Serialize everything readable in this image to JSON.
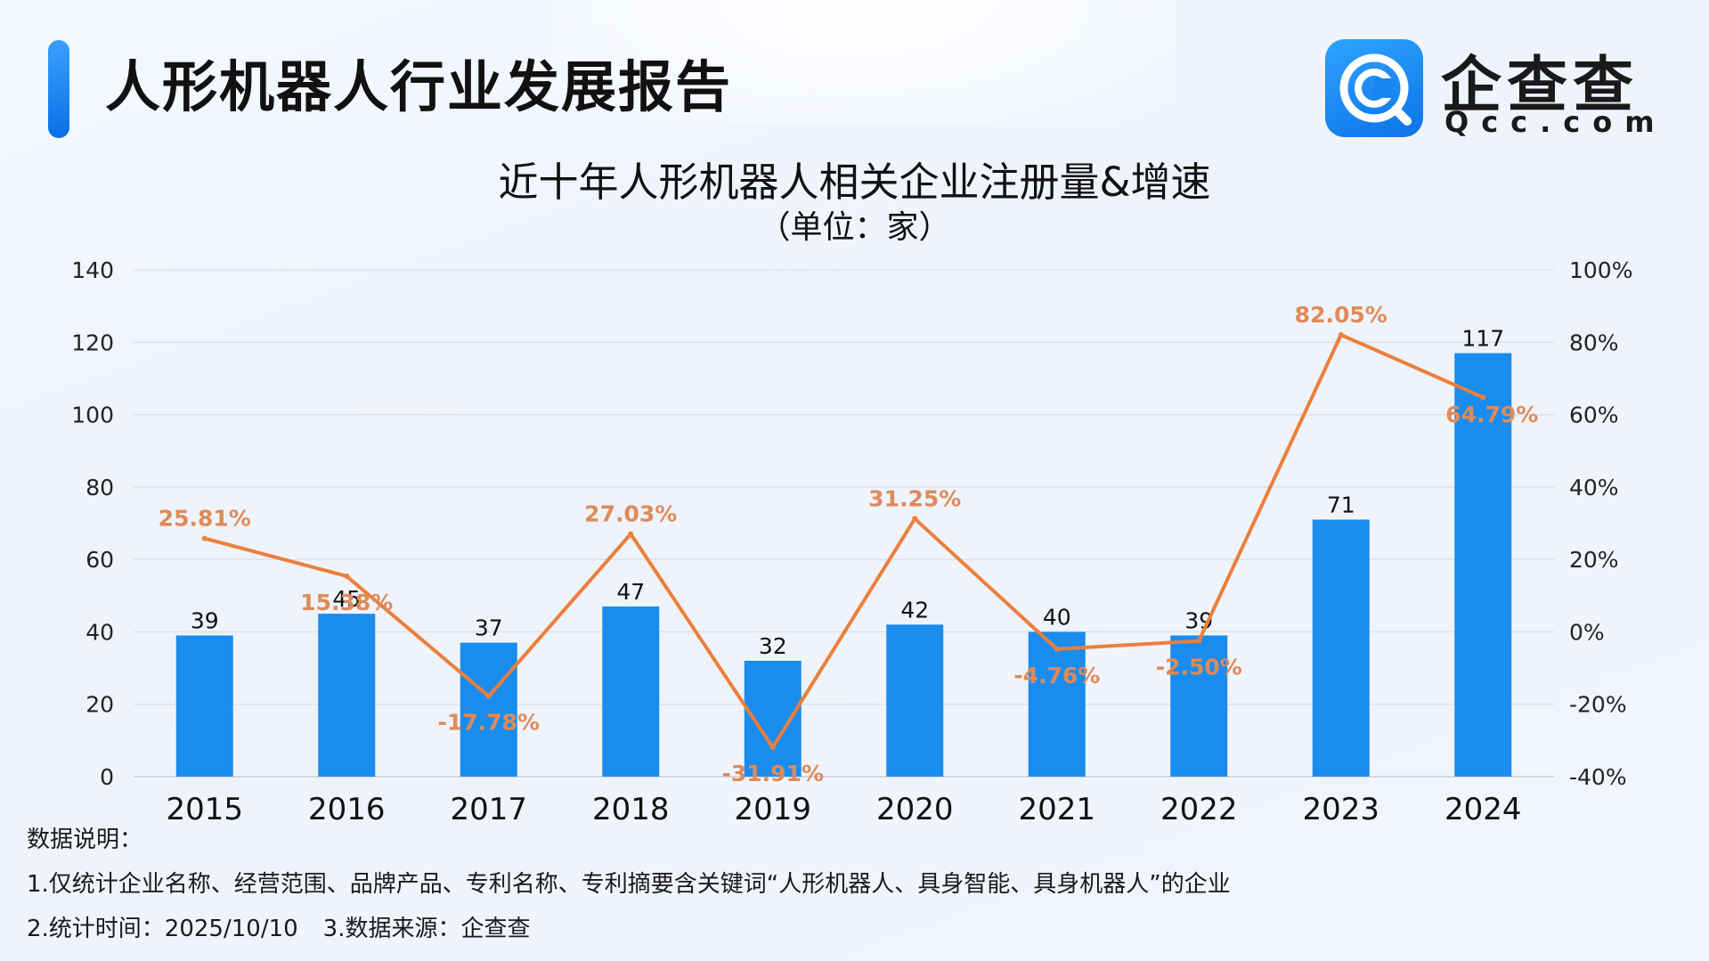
{
  "header": {
    "title": "人形机器人行业发展报告",
    "logo_name": "企查查",
    "logo_domain": "Qcc.com"
  },
  "chart_data": {
    "type": "bar",
    "title": "近十年人形机器人相关企业注册量&增速",
    "subtitle": "（单位：家）",
    "categories": [
      "2015",
      "2016",
      "2017",
      "2018",
      "2019",
      "2020",
      "2021",
      "2022",
      "2023",
      "2024"
    ],
    "series": [
      {
        "name": "企业注册量",
        "type": "bar",
        "axis": "left",
        "color": "#1a8cee",
        "values": [
          39,
          45,
          37,
          47,
          32,
          42,
          40,
          39,
          71,
          117
        ],
        "labels": [
          "39",
          "45",
          "37",
          "47",
          "32",
          "42",
          "40",
          "39",
          "71",
          "117"
        ]
      },
      {
        "name": "增速",
        "type": "line",
        "axis": "right",
        "color": "#ec7f3b",
        "values": [
          25.81,
          15.38,
          -17.78,
          27.03,
          -31.91,
          31.25,
          -4.76,
          -2.5,
          82.05,
          64.79
        ],
        "labels": [
          "25.81%",
          "15.38%",
          "-17.78%",
          "27.03%",
          "-31.91%",
          "31.25%",
          "-4.76%",
          "-2.50%",
          "82.05%",
          "64.79%"
        ]
      }
    ],
    "ylim_left": [
      0,
      140
    ],
    "yticks_left": [
      "0",
      "20",
      "40",
      "60",
      "80",
      "100",
      "120",
      "140"
    ],
    "ylim_right": [
      -40,
      100
    ],
    "yticks_right": [
      "-40%",
      "-20%",
      "0%",
      "20%",
      "40%",
      "60%",
      "80%",
      "100%"
    ],
    "grid": true
  },
  "notes": {
    "heading": "数据说明：",
    "line1": "1.仅统计企业名称、经营范围、品牌产品、专利名称、专利摘要含关键词“人形机器人、具身智能、具身机器人”的企业",
    "line2a": "2.统计时间：2025/10/10",
    "line2b": "3.数据来源：企查查"
  }
}
